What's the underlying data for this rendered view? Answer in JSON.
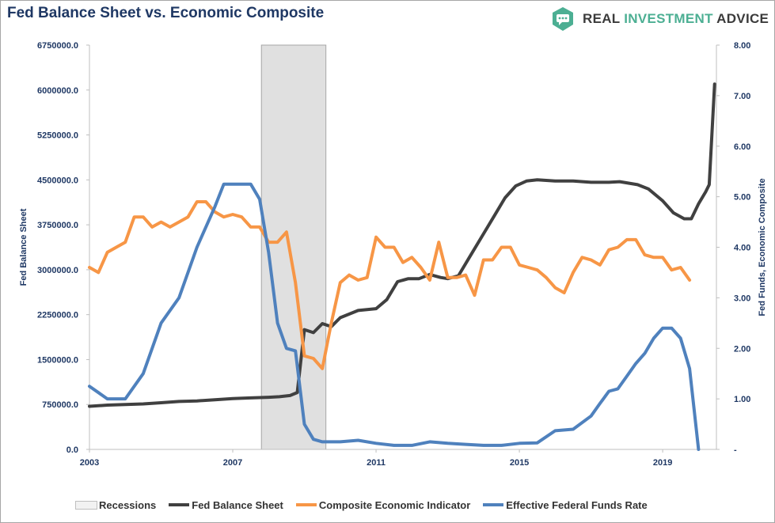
{
  "header": {
    "title": "Fed Balance Sheet vs. Economic Composite",
    "brand_part1": "REAL ",
    "brand_part2": "INVESTMENT",
    "brand_part3": " ADVICE",
    "brand_dark_color": "#3b3b3b",
    "brand_accent_color": "#4caf93"
  },
  "chart_data": {
    "type": "line",
    "x_ticks": [
      "2003",
      "2007",
      "2011",
      "2015",
      "2019"
    ],
    "y_left": {
      "label": "Fed Balance Sheet",
      "range": [
        0,
        6750000
      ],
      "ticks": [
        "6750000.0",
        "6000000.0",
        "5250000.0",
        "4500000.0",
        "3750000.0",
        "3000000.0",
        "2250000.0",
        "1500000.0",
        "750000.0",
        "0.0"
      ]
    },
    "y_right": {
      "label": "Fed Funds, Economic Composite",
      "range": [
        0,
        8
      ],
      "ticks": [
        "8.00",
        "7.00",
        "6.00",
        "5.00",
        "4.00",
        "3.00",
        "2.00",
        "1.00",
        "-"
      ]
    },
    "x_range": [
      2003.0,
      2020.5
    ],
    "recession": {
      "name": "Recessions",
      "start": 2007.8,
      "end": 2009.6,
      "color": "#e0e0e0"
    },
    "series": [
      {
        "name": "Fed Balance Sheet",
        "axis": "left",
        "color": "#404040",
        "points": [
          [
            2003.0,
            720000
          ],
          [
            2003.5,
            740000
          ],
          [
            2004.0,
            750000
          ],
          [
            2004.5,
            760000
          ],
          [
            2005.0,
            780000
          ],
          [
            2005.5,
            800000
          ],
          [
            2006.0,
            810000
          ],
          [
            2006.5,
            830000
          ],
          [
            2007.0,
            850000
          ],
          [
            2007.5,
            860000
          ],
          [
            2008.0,
            870000
          ],
          [
            2008.3,
            880000
          ],
          [
            2008.6,
            900000
          ],
          [
            2008.8,
            950000
          ],
          [
            2009.0,
            2000000
          ],
          [
            2009.25,
            1950000
          ],
          [
            2009.5,
            2100000
          ],
          [
            2009.75,
            2050000
          ],
          [
            2010.0,
            2200000
          ],
          [
            2010.5,
            2320000
          ],
          [
            2011.0,
            2350000
          ],
          [
            2011.3,
            2500000
          ],
          [
            2011.6,
            2800000
          ],
          [
            2011.9,
            2850000
          ],
          [
            2012.2,
            2850000
          ],
          [
            2012.5,
            2920000
          ],
          [
            2012.8,
            2870000
          ],
          [
            2013.0,
            2850000
          ],
          [
            2013.3,
            2900000
          ],
          [
            2013.6,
            3200000
          ],
          [
            2014.0,
            3600000
          ],
          [
            2014.3,
            3900000
          ],
          [
            2014.6,
            4200000
          ],
          [
            2014.9,
            4400000
          ],
          [
            2015.2,
            4480000
          ],
          [
            2015.5,
            4500000
          ],
          [
            2016.0,
            4480000
          ],
          [
            2016.5,
            4480000
          ],
          [
            2017.0,
            4460000
          ],
          [
            2017.5,
            4460000
          ],
          [
            2017.8,
            4470000
          ],
          [
            2018.0,
            4450000
          ],
          [
            2018.3,
            4420000
          ],
          [
            2018.6,
            4350000
          ],
          [
            2019.0,
            4150000
          ],
          [
            2019.3,
            3950000
          ],
          [
            2019.6,
            3850000
          ],
          [
            2019.8,
            3850000
          ],
          [
            2020.0,
            4100000
          ],
          [
            2020.2,
            4300000
          ],
          [
            2020.3,
            4420000
          ],
          [
            2020.45,
            6100000
          ]
        ]
      },
      {
        "name": "Composite Economic Indicator",
        "axis": "right",
        "color": "#f79646",
        "points": [
          [
            2003.0,
            3.6
          ],
          [
            2003.25,
            3.5
          ],
          [
            2003.5,
            3.9
          ],
          [
            2003.75,
            4.0
          ],
          [
            2004.0,
            4.1
          ],
          [
            2004.25,
            4.6
          ],
          [
            2004.5,
            4.6
          ],
          [
            2004.75,
            4.4
          ],
          [
            2005.0,
            4.5
          ],
          [
            2005.25,
            4.4
          ],
          [
            2005.5,
            4.5
          ],
          [
            2005.75,
            4.6
          ],
          [
            2006.0,
            4.9
          ],
          [
            2006.25,
            4.9
          ],
          [
            2006.5,
            4.7
          ],
          [
            2006.75,
            4.6
          ],
          [
            2007.0,
            4.65
          ],
          [
            2007.25,
            4.6
          ],
          [
            2007.5,
            4.4
          ],
          [
            2007.75,
            4.4
          ],
          [
            2008.0,
            4.1
          ],
          [
            2008.25,
            4.1
          ],
          [
            2008.5,
            4.3
          ],
          [
            2008.75,
            3.3
          ],
          [
            2009.0,
            1.85
          ],
          [
            2009.25,
            1.8
          ],
          [
            2009.5,
            1.6
          ],
          [
            2009.75,
            2.5
          ],
          [
            2010.0,
            3.3
          ],
          [
            2010.25,
            3.45
          ],
          [
            2010.5,
            3.35
          ],
          [
            2010.75,
            3.4
          ],
          [
            2011.0,
            4.2
          ],
          [
            2011.25,
            4.0
          ],
          [
            2011.5,
            4.0
          ],
          [
            2011.75,
            3.7
          ],
          [
            2012.0,
            3.8
          ],
          [
            2012.25,
            3.6
          ],
          [
            2012.5,
            3.35
          ],
          [
            2012.75,
            4.1
          ],
          [
            2013.0,
            3.4
          ],
          [
            2013.25,
            3.4
          ],
          [
            2013.5,
            3.45
          ],
          [
            2013.75,
            3.05
          ],
          [
            2014.0,
            3.75
          ],
          [
            2014.25,
            3.75
          ],
          [
            2014.5,
            4.0
          ],
          [
            2014.75,
            4.0
          ],
          [
            2015.0,
            3.65
          ],
          [
            2015.25,
            3.6
          ],
          [
            2015.5,
            3.55
          ],
          [
            2015.75,
            3.4
          ],
          [
            2016.0,
            3.2
          ],
          [
            2016.25,
            3.1
          ],
          [
            2016.5,
            3.5
          ],
          [
            2016.75,
            3.8
          ],
          [
            2017.0,
            3.75
          ],
          [
            2017.25,
            3.65
          ],
          [
            2017.5,
            3.95
          ],
          [
            2017.75,
            4.0
          ],
          [
            2018.0,
            4.15
          ],
          [
            2018.25,
            4.15
          ],
          [
            2018.5,
            3.85
          ],
          [
            2018.75,
            3.8
          ],
          [
            2019.0,
            3.8
          ],
          [
            2019.25,
            3.55
          ],
          [
            2019.5,
            3.6
          ],
          [
            2019.75,
            3.35
          ]
        ]
      },
      {
        "name": "Effective Federal Funds Rate",
        "axis": "right",
        "color": "#4f81bd",
        "points": [
          [
            2003.0,
            1.25
          ],
          [
            2003.5,
            1.0
          ],
          [
            2004.0,
            1.0
          ],
          [
            2004.5,
            1.5
          ],
          [
            2005.0,
            2.5
          ],
          [
            2005.5,
            3.0
          ],
          [
            2006.0,
            4.0
          ],
          [
            2006.5,
            4.8
          ],
          [
            2006.75,
            5.25
          ],
          [
            2007.0,
            5.25
          ],
          [
            2007.25,
            5.25
          ],
          [
            2007.5,
            5.25
          ],
          [
            2007.75,
            4.95
          ],
          [
            2008.0,
            3.9
          ],
          [
            2008.25,
            2.5
          ],
          [
            2008.5,
            2.0
          ],
          [
            2008.75,
            1.95
          ],
          [
            2009.0,
            0.5
          ],
          [
            2009.25,
            0.2
          ],
          [
            2009.5,
            0.15
          ],
          [
            2010.0,
            0.15
          ],
          [
            2010.5,
            0.18
          ],
          [
            2011.0,
            0.12
          ],
          [
            2011.5,
            0.08
          ],
          [
            2012.0,
            0.08
          ],
          [
            2012.5,
            0.15
          ],
          [
            2013.0,
            0.12
          ],
          [
            2013.5,
            0.1
          ],
          [
            2014.0,
            0.08
          ],
          [
            2014.5,
            0.08
          ],
          [
            2015.0,
            0.12
          ],
          [
            2015.5,
            0.13
          ],
          [
            2016.0,
            0.37
          ],
          [
            2016.5,
            0.4
          ],
          [
            2017.0,
            0.66
          ],
          [
            2017.25,
            0.91
          ],
          [
            2017.5,
            1.15
          ],
          [
            2017.75,
            1.2
          ],
          [
            2018.0,
            1.45
          ],
          [
            2018.25,
            1.7
          ],
          [
            2018.5,
            1.9
          ],
          [
            2018.75,
            2.2
          ],
          [
            2019.0,
            2.4
          ],
          [
            2019.25,
            2.4
          ],
          [
            2019.5,
            2.2
          ],
          [
            2019.75,
            1.6
          ],
          [
            2020.0,
            0.0
          ]
        ]
      }
    ],
    "legend_position": "bottom"
  }
}
